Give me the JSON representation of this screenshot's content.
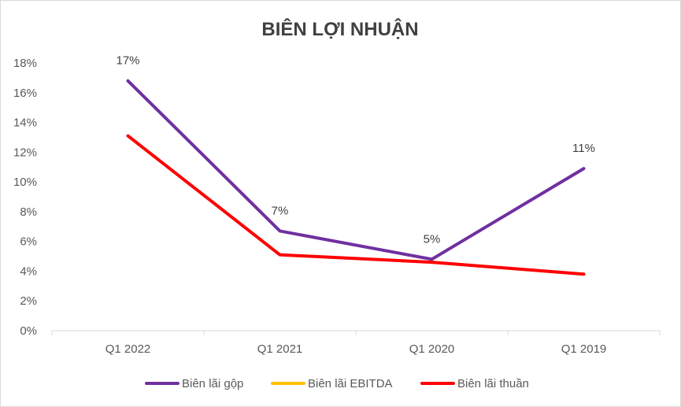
{
  "chart_data": {
    "type": "line",
    "title": "BIÊN LỢI NHUẬN",
    "xlabel": "",
    "ylabel": "",
    "categories": [
      "Q1 2022",
      "Q1 2021",
      "Q1 2020",
      "Q1 2019"
    ],
    "y_ticks": [
      "0%",
      "2%",
      "4%",
      "6%",
      "8%",
      "10%",
      "12%",
      "14%",
      "16%",
      "18%"
    ],
    "ylim": [
      0,
      18
    ],
    "grid": false,
    "legend_position": "bottom",
    "series": [
      {
        "name": "Biên lãi gộp",
        "color": "#7030a0",
        "values": [
          16.8,
          6.7,
          4.8,
          10.9
        ],
        "data_labels": [
          "17%",
          "7%",
          "5%",
          "11%"
        ]
      },
      {
        "name": "Biên lãi EBITDA",
        "color": "#ffc000",
        "values": [
          null,
          null,
          null,
          null
        ],
        "data_labels": []
      },
      {
        "name": "Biên lãi thuần",
        "color": "#ff0000",
        "values": [
          13.1,
          5.1,
          4.6,
          3.8
        ],
        "data_labels": []
      }
    ]
  }
}
